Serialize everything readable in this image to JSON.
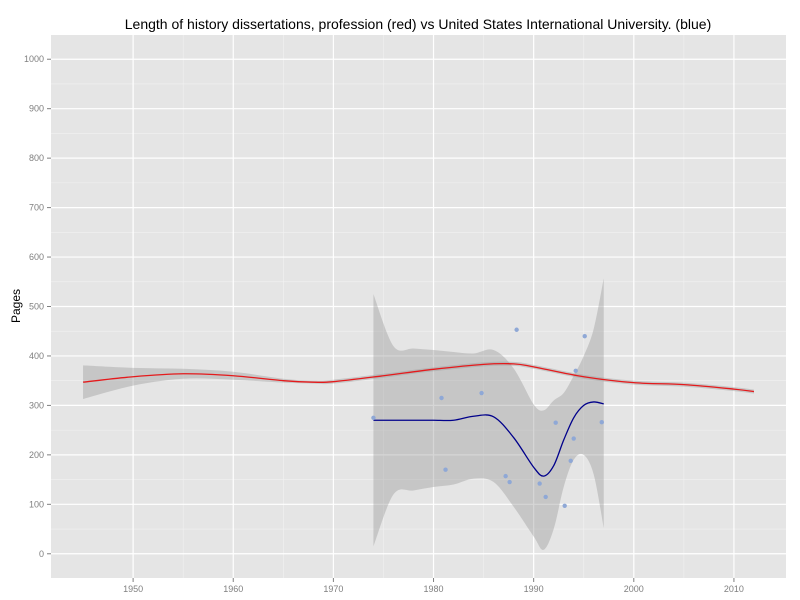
{
  "chart_data": {
    "type": "scatter",
    "title": "Length of history dissertations, profession (red) vs United States International University. (blue)",
    "xlabel": "",
    "ylabel": "Pages",
    "xlim": [
      1941.8,
      2015.2
    ],
    "ylim": [
      -49,
      1049
    ],
    "x_ticks": [
      1950,
      1960,
      1970,
      1980,
      1990,
      2000,
      2010
    ],
    "y_ticks": [
      0,
      100,
      200,
      300,
      400,
      500,
      600,
      700,
      800,
      900,
      1000
    ],
    "grid": true,
    "background": "#e5e5e5",
    "series": [
      {
        "name": "profession",
        "kind": "smooth",
        "color": "#e41a1c",
        "x": [
          1945,
          1950,
          1955,
          1960,
          1965,
          1968,
          1970,
          1975,
          1980,
          1985,
          1988,
          1990,
          1995,
          2000,
          2005,
          2010,
          2012
        ],
        "y": [
          347,
          358,
          364,
          360,
          350,
          347,
          348,
          360,
          373,
          383,
          384,
          378,
          358,
          346,
          342,
          333,
          328
        ],
        "band_upper": [
          381,
          376,
          374,
          368,
          354,
          350,
          352,
          364,
          377,
          387,
          388,
          382,
          362,
          350,
          346,
          337,
          332
        ],
        "band_lower": [
          313,
          340,
          354,
          352,
          346,
          344,
          344,
          356,
          369,
          379,
          380,
          374,
          354,
          342,
          338,
          329,
          324
        ]
      },
      {
        "name": "United States International University",
        "kind": "smooth",
        "color": "#00008b",
        "x": [
          1974,
          1976,
          1978,
          1980,
          1982,
          1984,
          1986,
          1988,
          1990,
          1991,
          1992,
          1993,
          1994,
          1995,
          1996,
          1997
        ],
        "y": [
          270,
          270,
          270,
          270,
          270,
          278,
          277,
          235,
          175,
          157,
          178,
          230,
          275,
          300,
          307,
          303
        ],
        "band_upper": [
          525,
          420,
          415,
          412,
          408,
          405,
          412,
          375,
          302,
          290,
          310,
          325,
          360,
          400,
          455,
          557
        ],
        "band_lower": [
          15,
          120,
          128,
          135,
          140,
          152,
          145,
          95,
          35,
          8,
          50,
          135,
          190,
          200,
          160,
          52
        ]
      },
      {
        "name": "United States International University points",
        "kind": "points",
        "color": "#8fa8d6",
        "x": [
          1974,
          1980.8,
          1981.2,
          1984.8,
          1987.2,
          1987.6,
          1988.3,
          1990.6,
          1991.2,
          1992.2,
          1993.1,
          1993.7,
          1994.0,
          1994.2,
          1995.1,
          1996.8
        ],
        "y": [
          275,
          315,
          170,
          325,
          157,
          145,
          453,
          142,
          115,
          265,
          97,
          188,
          233,
          370,
          440,
          266
        ]
      }
    ]
  }
}
